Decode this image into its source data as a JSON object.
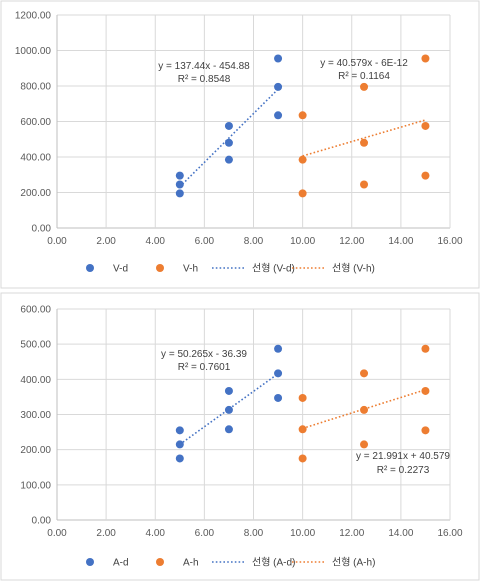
{
  "chart_data": [
    {
      "type": "scatter",
      "xlim": [
        0,
        16
      ],
      "ylim": [
        0,
        1200
      ],
      "xticks": [
        "0.00",
        "2.00",
        "4.00",
        "6.00",
        "8.00",
        "10.00",
        "12.00",
        "14.00",
        "16.00"
      ],
      "yticks": [
        "0.00",
        "200.00",
        "400.00",
        "600.00",
        "800.00",
        "1000.00",
        "1200.00"
      ],
      "grid": true,
      "legend_position": "bottom",
      "series": [
        {
          "name": "V-d",
          "color": "#4472c4",
          "points": [
            [
              5,
              195
            ],
            [
              5,
              245
            ],
            [
              5,
              295
            ],
            [
              7,
              385
            ],
            [
              7,
              480
            ],
            [
              7,
              575
            ],
            [
              9,
              635
            ],
            [
              9,
              795
            ],
            [
              9,
              955
            ]
          ]
        },
        {
          "name": "V-h",
          "color": "#ed7d31",
          "points": [
            [
              10,
              195
            ],
            [
              10,
              385
            ],
            [
              10,
              635
            ],
            [
              12.5,
              245
            ],
            [
              12.5,
              480
            ],
            [
              12.5,
              795
            ],
            [
              15,
              295
            ],
            [
              15,
              575
            ],
            [
              15,
              955
            ]
          ]
        }
      ],
      "trendlines": [
        {
          "name": "선형 (V-d)",
          "color": "#4472c4",
          "slope": 137.44,
          "intercept": -454.88,
          "x_range": [
            5,
            9
          ],
          "equation": "y = 137.44x - 454.88",
          "r2": "R² = 0.8548"
        },
        {
          "name": "선형 (V-h)",
          "color": "#ed7d31",
          "slope": 40.579,
          "intercept": 0,
          "x_range": [
            10,
            15
          ],
          "equation": "y = 40.579x - 6E-12",
          "r2": "R² = 0.1164"
        }
      ]
    },
    {
      "type": "scatter",
      "xlim": [
        0,
        16
      ],
      "ylim": [
        0,
        600
      ],
      "xticks": [
        "0.00",
        "2.00",
        "4.00",
        "6.00",
        "8.00",
        "10.00",
        "12.00",
        "14.00",
        "16.00"
      ],
      "yticks": [
        "0.00",
        "100.00",
        "200.00",
        "300.00",
        "400.00",
        "500.00",
        "600.00"
      ],
      "grid": true,
      "legend_position": "bottom",
      "series": [
        {
          "name": "A-d",
          "color": "#4472c4",
          "points": [
            [
              5,
              175
            ],
            [
              5,
              215
            ],
            [
              5,
              255
            ],
            [
              7,
              258
            ],
            [
              7,
              313
            ],
            [
              7,
              367
            ],
            [
              9,
              347
            ],
            [
              9,
              417
            ],
            [
              9,
              487
            ]
          ]
        },
        {
          "name": "A-h",
          "color": "#ed7d31",
          "points": [
            [
              10,
              175
            ],
            [
              10,
              258
            ],
            [
              10,
              347
            ],
            [
              12.5,
              215
            ],
            [
              12.5,
              313
            ],
            [
              12.5,
              417
            ],
            [
              15,
              255
            ],
            [
              15,
              367
            ],
            [
              15,
              487
            ]
          ]
        }
      ],
      "trendlines": [
        {
          "name": "선형 (A-d)",
          "color": "#4472c4",
          "slope": 50.265,
          "intercept": -36.39,
          "x_range": [
            5,
            9
          ],
          "equation": "y = 50.265x - 36.39",
          "r2": "R² = 0.7601"
        },
        {
          "name": "선형 (A-h)",
          "color": "#ed7d31",
          "slope": 21.991,
          "intercept": 40.579,
          "x_range": [
            10,
            15
          ],
          "equation": "y = 21.991x + 40.579",
          "r2": "R² = 0.2273"
        }
      ]
    }
  ]
}
